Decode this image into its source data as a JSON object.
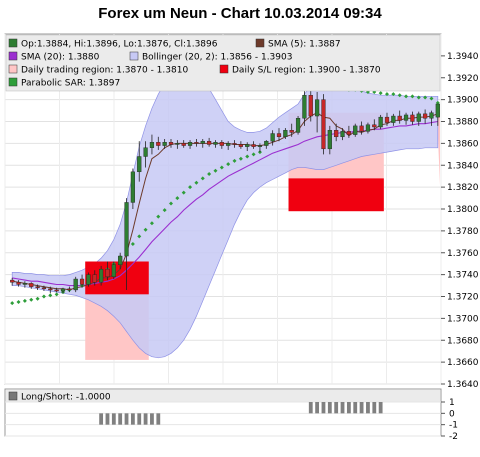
{
  "title": "Forex um Neun - Chart 10.03.2014 09:34",
  "legend": {
    "ohlc": "Op:1.3884, Hi:1.3896, Lo:1.3876, Cl:1.3896",
    "sma5": "SMA (5): 1.3887",
    "sma20": "SMA (20): 1.3880",
    "bollinger": "Bollinger (20, 2): 1.3856 - 1.3903",
    "daily_region": "Daily trading region: 1.3870 - 1.3810",
    "sl_region": "Daily S/L region: 1.3900 - 1.3870",
    "sar": "Parabolic SAR: 1.3897"
  },
  "subpanel": {
    "label": "Long/Short: -1.0000",
    "yticks": [
      "1",
      "0",
      "-1",
      "-2"
    ]
  },
  "colors": {
    "candle_up": "#2e7d32",
    "candle_down": "#c62828",
    "sma5": "#6d3a2a",
    "sma20": "#9b2fd0",
    "bollinger_fill": "#c7c9f5",
    "daily_region": "#ffc6c6",
    "sl_region": "#f00010",
    "sar": "#2e9e3a"
  },
  "chart_data": {
    "type": "candlestick",
    "title": "Forex um Neun - Chart 10.03.2014 09:34",
    "ylim": [
      1.364,
      1.396
    ],
    "yticks": [
      "1.3940",
      "1.3920",
      "1.3900",
      "1.3880",
      "1.3860",
      "1.3840",
      "1.3820",
      "1.3800",
      "1.3780",
      "1.3760",
      "1.3740",
      "1.3720",
      "1.3700",
      "1.3680",
      "1.3660",
      "1.3640"
    ],
    "candles": [
      [
        1.3735,
        1.3737,
        1.373,
        1.3733
      ],
      [
        1.3733,
        1.3735,
        1.3729,
        1.3731
      ],
      [
        1.3731,
        1.3734,
        1.3728,
        1.3732
      ],
      [
        1.3732,
        1.3733,
        1.3727,
        1.3729
      ],
      [
        1.3729,
        1.3731,
        1.3726,
        1.3728
      ],
      [
        1.3728,
        1.373,
        1.3725,
        1.3727
      ],
      [
        1.3727,
        1.3729,
        1.3723,
        1.3726
      ],
      [
        1.3726,
        1.3728,
        1.3724,
        1.3725
      ],
      [
        1.3725,
        1.3728,
        1.3723,
        1.3727
      ],
      [
        1.3727,
        1.3729,
        1.3724,
        1.3726
      ],
      [
        1.3726,
        1.3738,
        1.3724,
        1.3736
      ],
      [
        1.3736,
        1.374,
        1.3728,
        1.3731
      ],
      [
        1.3731,
        1.3742,
        1.3729,
        1.374
      ],
      [
        1.374,
        1.3744,
        1.373,
        1.3733
      ],
      [
        1.3733,
        1.3748,
        1.373,
        1.3745
      ],
      [
        1.3745,
        1.3752,
        1.3735,
        1.3738
      ],
      [
        1.3738,
        1.3752,
        1.3736,
        1.3749
      ],
      [
        1.3749,
        1.376,
        1.3745,
        1.3757
      ],
      [
        1.3757,
        1.381,
        1.3726,
        1.3806
      ],
      [
        1.3806,
        1.3837,
        1.38,
        1.3834
      ],
      [
        1.3834,
        1.3862,
        1.3825,
        1.3848
      ],
      [
        1.3848,
        1.3862,
        1.3838,
        1.3856
      ],
      [
        1.3856,
        1.3868,
        1.385,
        1.3861
      ],
      [
        1.3861,
        1.3866,
        1.3854,
        1.3858
      ],
      [
        1.3858,
        1.3864,
        1.3855,
        1.3861
      ],
      [
        1.3861,
        1.3864,
        1.3856,
        1.3859
      ],
      [
        1.3859,
        1.3863,
        1.3855,
        1.386
      ],
      [
        1.386,
        1.3863,
        1.3856,
        1.3858
      ],
      [
        1.3858,
        1.3863,
        1.3855,
        1.3861
      ],
      [
        1.3861,
        1.3864,
        1.3857,
        1.386
      ],
      [
        1.386,
        1.3864,
        1.3856,
        1.3862
      ],
      [
        1.3862,
        1.3865,
        1.3857,
        1.3859
      ],
      [
        1.3859,
        1.3863,
        1.3856,
        1.3861
      ],
      [
        1.3861,
        1.3863,
        1.3855,
        1.3858
      ],
      [
        1.3858,
        1.3862,
        1.3854,
        1.386
      ],
      [
        1.386,
        1.3863,
        1.3856,
        1.3859
      ],
      [
        1.3859,
        1.3862,
        1.3855,
        1.3857
      ],
      [
        1.3857,
        1.3861,
        1.3853,
        1.3859
      ],
      [
        1.3859,
        1.3862,
        1.3855,
        1.3857
      ],
      [
        1.3857,
        1.386,
        1.3852,
        1.3858
      ],
      [
        1.3858,
        1.3863,
        1.3855,
        1.3862
      ],
      [
        1.3862,
        1.3872,
        1.3858,
        1.3869
      ],
      [
        1.3869,
        1.3874,
        1.3862,
        1.3866
      ],
      [
        1.3866,
        1.3874,
        1.3864,
        1.3872
      ],
      [
        1.3872,
        1.3878,
        1.3866,
        1.387
      ],
      [
        1.387,
        1.3885,
        1.3868,
        1.3883
      ],
      [
        1.3883,
        1.3908,
        1.3876,
        1.3904
      ],
      [
        1.3904,
        1.3912,
        1.388,
        1.3885
      ],
      [
        1.3885,
        1.3907,
        1.387,
        1.39
      ],
      [
        1.39,
        1.3905,
        1.385,
        1.3855
      ],
      [
        1.3855,
        1.3876,
        1.385,
        1.3872
      ],
      [
        1.3872,
        1.3878,
        1.3862,
        1.3866
      ],
      [
        1.3866,
        1.3874,
        1.3863,
        1.3871
      ],
      [
        1.3871,
        1.3876,
        1.3865,
        1.3868
      ],
      [
        1.3868,
        1.3878,
        1.3866,
        1.3876
      ],
      [
        1.3876,
        1.388,
        1.3868,
        1.3871
      ],
      [
        1.3871,
        1.3879,
        1.3869,
        1.3877
      ],
      [
        1.3877,
        1.3882,
        1.3872,
        1.3875
      ],
      [
        1.3875,
        1.3886,
        1.3873,
        1.3884
      ],
      [
        1.3884,
        1.3888,
        1.3876,
        1.3879
      ],
      [
        1.3879,
        1.3887,
        1.3876,
        1.3885
      ],
      [
        1.3885,
        1.389,
        1.3878,
        1.3881
      ],
      [
        1.3881,
        1.3888,
        1.3877,
        1.3886
      ],
      [
        1.3886,
        1.3889,
        1.3877,
        1.388
      ],
      [
        1.388,
        1.3889,
        1.3876,
        1.3887
      ],
      [
        1.3887,
        1.3891,
        1.3878,
        1.3883
      ],
      [
        1.3883,
        1.389,
        1.3876,
        1.3888
      ],
      [
        1.3884,
        1.3896,
        1.3876,
        1.3896
      ]
    ],
    "series": [
      {
        "name": "SMA (5)",
        "values": [
          1.3734,
          1.3733,
          1.3732,
          1.3731,
          1.373,
          1.3729,
          1.3728,
          1.3727,
          1.3727,
          1.3726,
          1.3728,
          1.3729,
          1.3731,
          1.3733,
          1.3737,
          1.3737,
          1.374,
          1.3745,
          1.3759,
          1.3781,
          1.3805,
          1.3828,
          1.3846,
          1.385,
          1.3856,
          1.3859,
          1.386,
          1.386,
          1.386,
          1.386,
          1.386,
          1.386,
          1.386,
          1.386,
          1.386,
          1.3859,
          1.3859,
          1.3859,
          1.3858,
          1.3858,
          1.3859,
          1.3861,
          1.3863,
          1.3866,
          1.3868,
          1.3872,
          1.388,
          1.3885,
          1.3888,
          1.3884,
          1.3883,
          1.3876,
          1.3873,
          1.3867,
          1.3871,
          1.387,
          1.3872,
          1.3873,
          1.3877,
          1.3878,
          1.3881,
          1.3881,
          1.3883,
          1.3883,
          1.3884,
          1.3884,
          1.3885,
          1.3887
        ]
      },
      {
        "name": "SMA (20)",
        "values": [
          1.3737,
          1.3736,
          1.3735,
          1.3734,
          1.3734,
          1.3733,
          1.3732,
          1.3731,
          1.3731,
          1.373,
          1.373,
          1.373,
          1.3731,
          1.3732,
          1.3733,
          1.3734,
          1.3736,
          1.3739,
          1.3744,
          1.375,
          1.3756,
          1.3763,
          1.377,
          1.3776,
          1.3782,
          1.3788,
          1.3793,
          1.3799,
          1.3804,
          1.3809,
          1.3813,
          1.3818,
          1.3822,
          1.3826,
          1.383,
          1.3833,
          1.3836,
          1.3839,
          1.3842,
          1.3845,
          1.3848,
          1.3851,
          1.3853,
          1.3855,
          1.3857,
          1.3859,
          1.3862,
          1.3864,
          1.3866,
          1.3867,
          1.3868,
          1.3869,
          1.387,
          1.387,
          1.3871,
          1.3871,
          1.3872,
          1.3873,
          1.3873,
          1.3874,
          1.3875,
          1.3876,
          1.3876,
          1.3877,
          1.3878,
          1.3878,
          1.3879,
          1.388
        ]
      },
      {
        "name": "Bollinger upper",
        "values": [
          1.3742,
          1.3742,
          1.3741,
          1.3741,
          1.374,
          1.374,
          1.3739,
          1.3739,
          1.3739,
          1.374,
          1.3742,
          1.3744,
          1.3747,
          1.375,
          1.3755,
          1.3762,
          1.3772,
          1.3786,
          1.3806,
          1.3832,
          1.3857,
          1.3876,
          1.3892,
          1.3905,
          1.3915,
          1.3922,
          1.3926,
          1.3927,
          1.3926,
          1.3923,
          1.3918,
          1.391,
          1.39,
          1.389,
          1.388,
          1.3875,
          1.3872,
          1.387,
          1.387,
          1.3871,
          1.3874,
          1.3879,
          1.3884,
          1.3888,
          1.3892,
          1.3896,
          1.3905,
          1.3912,
          1.3917,
          1.392,
          1.392,
          1.3918,
          1.3915,
          1.3912,
          1.391,
          1.3908,
          1.3906,
          1.3905,
          1.3904,
          1.3904,
          1.3904,
          1.3904,
          1.3903,
          1.3903,
          1.3903,
          1.3903,
          1.3903,
          1.3903
        ]
      },
      {
        "name": "Bollinger lower",
        "values": [
          1.373,
          1.373,
          1.3729,
          1.3728,
          1.3727,
          1.3726,
          1.3725,
          1.3724,
          1.3723,
          1.3722,
          1.3721,
          1.3719,
          1.3717,
          1.3714,
          1.3711,
          1.3707,
          1.3702,
          1.3696,
          1.3688,
          1.368,
          1.3673,
          1.3668,
          1.3665,
          1.3664,
          1.3665,
          1.3668,
          1.3673,
          1.368,
          1.369,
          1.3702,
          1.3716,
          1.373,
          1.3744,
          1.3758,
          1.3772,
          1.3786,
          1.3798,
          1.3808,
          1.3815,
          1.382,
          1.3824,
          1.3827,
          1.383,
          1.3833,
          1.3836,
          1.3838,
          1.3838,
          1.3837,
          1.3836,
          1.3836,
          1.3838,
          1.384,
          1.3842,
          1.3844,
          1.3846,
          1.3848,
          1.3849,
          1.385,
          1.3851,
          1.3852,
          1.3853,
          1.3854,
          1.3855,
          1.3855,
          1.3855,
          1.3856,
          1.3856,
          1.3856
        ]
      },
      {
        "name": "Parabolic SAR",
        "values": [
          1.3714,
          1.3715,
          1.3716,
          1.3717,
          1.3718,
          1.372,
          1.3721,
          1.3722,
          1.3724,
          1.3726,
          1.3728,
          1.373,
          1.3733,
          1.3736,
          1.374,
          1.3745,
          1.375,
          1.3756,
          1.3762,
          1.3768,
          1.3775,
          1.3781,
          1.3787,
          1.3793,
          1.3799,
          1.3805,
          1.381,
          1.3815,
          1.382,
          1.3824,
          1.3828,
          1.3832,
          1.3835,
          1.3838,
          1.3841,
          1.3844,
          1.3846,
          1.3848,
          1.385,
          1.3852,
          1.3917,
          1.3917,
          1.3916,
          1.3916,
          1.3915,
          1.3915,
          1.3914,
          1.3913,
          1.3913,
          1.3912,
          1.3911,
          1.3911,
          1.391,
          1.3909,
          1.3909,
          1.3908,
          1.3907,
          1.3907,
          1.3906,
          1.3905,
          1.3905,
          1.3904,
          1.3903,
          1.3903,
          1.3902,
          1.3902,
          1.3901,
          1.3897
        ]
      }
    ],
    "regions": {
      "daily_trading": [
        {
          "from": 12,
          "to": 21,
          "top": 1.3752,
          "bottom": 1.3662
        },
        {
          "from": 44,
          "to": 58,
          "top": 1.3888,
          "bottom": 1.3798
        }
      ],
      "daily_sl": [
        {
          "from": 12,
          "to": 21,
          "top": 1.3752,
          "bottom": 1.3722
        },
        {
          "from": 44,
          "to": 58,
          "top": 1.3828,
          "bottom": 1.3798
        }
      ],
      "tail_trading": {
        "from": 67,
        "to": 68,
        "top": 1.3888,
        "bottom": 1.3822
      }
    },
    "long_short": {
      "ylim": [
        -2,
        1
      ],
      "bars": [
        {
          "from": 14,
          "to": 23,
          "value": -1
        },
        {
          "from": 47,
          "to": 58,
          "value": 1
        }
      ]
    }
  }
}
